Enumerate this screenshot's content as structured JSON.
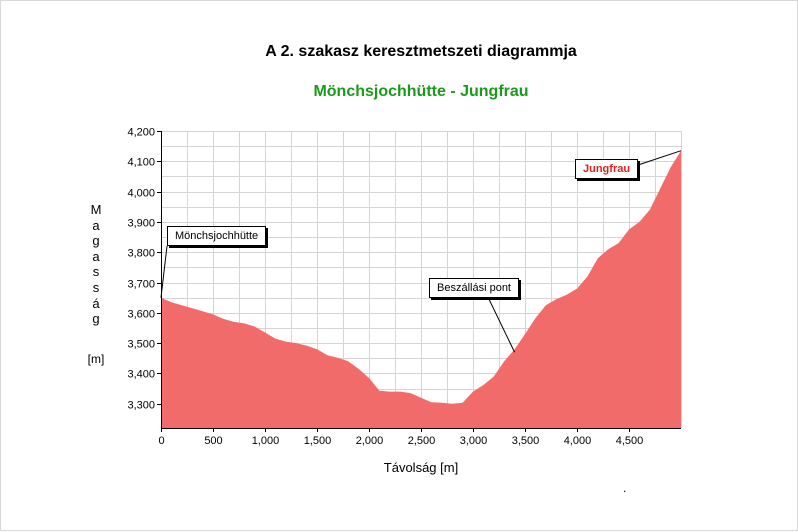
{
  "chart_data": {
    "type": "area",
    "title": "A 2. szakasz keresztmetszeti diagrammja",
    "subtitle": "Mönchsjochhütte - Jungfrau",
    "ylabel_letters": [
      "M",
      "a",
      "g",
      "a",
      "s",
      "s",
      "á",
      "g"
    ],
    "yunit": "[m]",
    "xlabel": "Távolság [m]",
    "xlim": [
      0,
      5000
    ],
    "ylim": [
      3220,
      4200
    ],
    "x_ticks": [
      "0",
      "500",
      "1,000",
      "1,500",
      "2,000",
      "2,500",
      "3,000",
      "3,500",
      "4,000",
      "4,500"
    ],
    "x_tick_values": [
      0,
      500,
      1000,
      1500,
      2000,
      2500,
      3000,
      3500,
      4000,
      4500
    ],
    "y_ticks": [
      "3,300",
      "3,400",
      "3,500",
      "3,600",
      "3,700",
      "3,800",
      "3,900",
      "4,000",
      "4,100",
      "4,200"
    ],
    "y_tick_values": [
      3300,
      3400,
      3500,
      3600,
      3700,
      3800,
      3900,
      4000,
      4100,
      4200
    ],
    "grid": true,
    "fill_color": "#f26b6b",
    "series": [
      {
        "x": [
          0,
          100,
          200,
          300,
          400,
          500,
          600,
          700,
          800,
          900,
          1000,
          1100,
          1200,
          1300,
          1400,
          1500,
          1600,
          1700,
          1800,
          1900,
          2000,
          2100,
          2200,
          2300,
          2400,
          2500,
          2600,
          2700,
          2800,
          2900,
          3000,
          3100,
          3200,
          3300,
          3400,
          3500,
          3600,
          3700,
          3800,
          3900,
          4000,
          4100,
          4200,
          4300,
          4400,
          4500,
          4600,
          4700,
          4800,
          4900,
          5000
        ],
        "y": [
          3650,
          3635,
          3625,
          3615,
          3605,
          3595,
          3580,
          3570,
          3565,
          3555,
          3535,
          3515,
          3505,
          3500,
          3492,
          3480,
          3460,
          3452,
          3440,
          3415,
          3385,
          3343,
          3340,
          3340,
          3335,
          3320,
          3305,
          3303,
          3300,
          3303,
          3340,
          3362,
          3390,
          3440,
          3480,
          3530,
          3582,
          3625,
          3645,
          3660,
          3680,
          3720,
          3780,
          3810,
          3830,
          3875,
          3900,
          3940,
          4010,
          4080,
          4135
        ]
      }
    ],
    "annotations": [
      {
        "label": "Mönchsjochhütte",
        "x": 0,
        "y": 3650
      },
      {
        "label": "Beszállási pont",
        "x": 3400,
        "y": 3470
      },
      {
        "label": "Jungfrau",
        "x": 5000,
        "y": 4135
      }
    ]
  }
}
